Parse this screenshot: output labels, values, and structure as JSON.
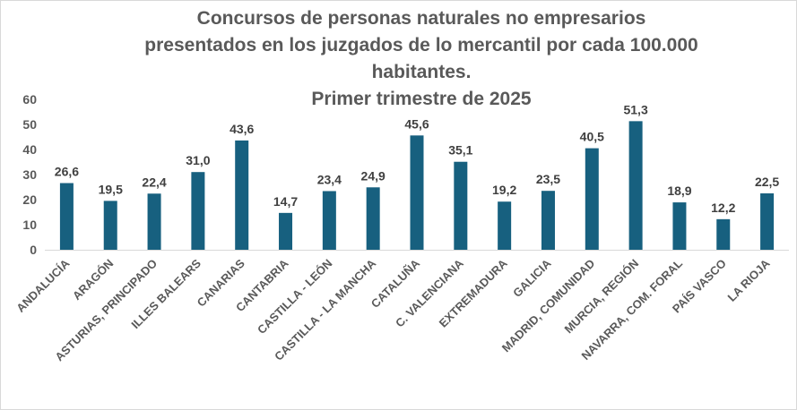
{
  "chart_data": {
    "type": "bar",
    "title_lines": [
      "Concursos de personas naturales no empresarios",
      "presentados en los juzgados de lo mercantil por cada 100.000",
      "habitantes.",
      "Primer trimestre de 2025"
    ],
    "categories": [
      "ANDALUCÍA",
      "ARAGÓN",
      "ASTURIAS, PRINCIPADO",
      "ILLES BALEARS",
      "CANARIAS",
      "CANTABRIA",
      "CASTILLA - LEÓN",
      "CASTILLA - LA MANCHA",
      "CATALUÑA",
      "C. VALENCIANA",
      "EXTREMADURA",
      "GALICIA",
      "MADRID, COMUNIDAD",
      "MURCIA, REGIÓN",
      "NAVARRA, COM. FORAL",
      "PAÍS VASCO",
      "LA RIOJA"
    ],
    "values": [
      26.6,
      19.5,
      22.4,
      31.0,
      43.6,
      14.7,
      23.4,
      24.9,
      45.6,
      35.1,
      19.2,
      23.5,
      40.5,
      51.3,
      18.9,
      12.2,
      22.5
    ],
    "data_labels": [
      "26,6",
      "19,5",
      "22,4",
      "31,0",
      "43,6",
      "14,7",
      "23,4",
      "24,9",
      "45,6",
      "35,1",
      "19,2",
      "23,5",
      "40,5",
      "51,3",
      "18,9",
      "12,2",
      "22,5"
    ],
    "y_ticks": [
      "0",
      "10",
      "20",
      "30",
      "40",
      "50",
      "60"
    ],
    "ylim": [
      0,
      60
    ],
    "grid": false,
    "legend": "none",
    "bar_color": "#17607f",
    "text_color": "#595959"
  }
}
